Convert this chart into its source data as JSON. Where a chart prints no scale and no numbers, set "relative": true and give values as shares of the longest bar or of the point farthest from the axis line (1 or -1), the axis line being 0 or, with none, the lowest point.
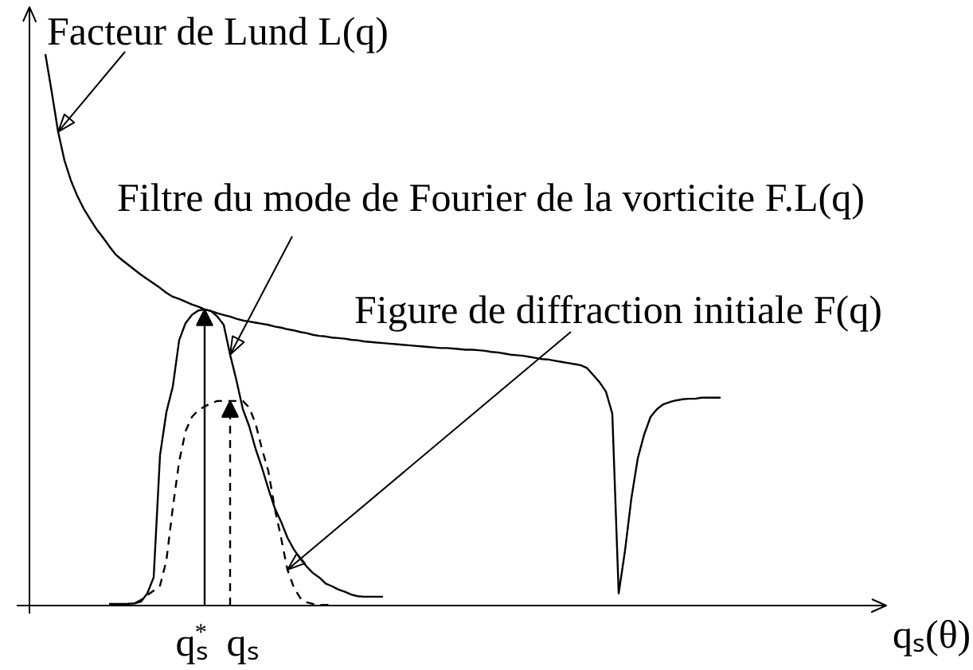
{
  "chart_data": {
    "type": "line",
    "relative": true,
    "tick_labels": "x",
    "line_style": "solid",
    "xlabel": "qₛ(θ)",
    "categories": [
      null,
      null,
      null,
      null,
      null,
      null,
      null,
      null,
      null,
      null,
      null,
      null,
      null,
      null,
      null,
      null,
      null,
      null,
      null,
      null,
      null,
      null,
      null,
      "qₛ$^{*}$",
      null,
      null,
      null,
      null,
      null,
      null,
      null,
      "qₛ",
      null,
      null,
      null,
      null,
      null,
      null,
      null,
      null,
      null,
      null,
      null,
      null,
      null,
      null,
      null,
      null,
      null,
      null,
      null,
      null,
      null,
      null,
      null,
      null,
      null,
      null,
      null,
      null,
      null,
      null,
      null,
      null,
      null,
      null,
      null,
      null,
      null,
      null,
      null,
      null,
      null,
      null,
      null,
      null,
      null,
      null,
      null,
      null,
      null,
      null,
      null,
      null,
      null,
      null,
      null,
      null,
      null,
      null,
      null,
      null,
      null,
      null,
      null,
      null,
      null,
      null,
      null,
      null,
      null,
      null,
      null,
      null,
      null,
      null,
      null
    ],
    "series": [
      {
        "name": "Facteur de Lund L(q)",
        "color": "#000000",
        "values": [
          1.0,
          0.931,
          0.859,
          0.807,
          0.771,
          0.743,
          0.72,
          0.701,
          0.683,
          0.668,
          0.652,
          0.637,
          0.627,
          0.618,
          0.609,
          0.6,
          0.592,
          0.584,
          0.576,
          0.567,
          0.56,
          0.556,
          0.551,
          0.546,
          0.542,
          0.537,
          0.534,
          0.53,
          0.527,
          0.524,
          0.52,
          0.517,
          0.515,
          0.513,
          0.511,
          0.509,
          0.506,
          0.504,
          0.501,
          0.499,
          0.496,
          0.494,
          0.491,
          0.489,
          0.488,
          0.486,
          0.485,
          0.484,
          0.482,
          0.481,
          0.479,
          0.478,
          0.477,
          0.476,
          0.475,
          0.474,
          0.473,
          0.472,
          0.471,
          0.47,
          0.469,
          0.468,
          0.467,
          0.467,
          0.466,
          0.465,
          0.464,
          0.464,
          0.463,
          0.462,
          0.46,
          0.459,
          0.457,
          0.455,
          0.454,
          0.453,
          0.451,
          0.449,
          0.447,
          0.446,
          0.444,
          0.442,
          0.44,
          0.438,
          0.436,
          0.431,
          0.418,
          0.405,
          0.388,
          0.348,
          0.022,
          0.1,
          0.195,
          0.267,
          0.31,
          0.342,
          0.356,
          0.365,
          0.369,
          0.372,
          0.374,
          0.375,
          0.375,
          0.377,
          0.377,
          0.377,
          0.377
        ]
      },
      {
        "name": "Filtre du mode de Fourier de la vorticite F.L(q)",
        "color": "#000000",
        "values": [
          null,
          null,
          null,
          null,
          null,
          null,
          null,
          null,
          null,
          null,
          0.003,
          0.003,
          0.003,
          0.003,
          0.004,
          0.007,
          0.022,
          0.051,
          0.273,
          0.351,
          0.397,
          0.481,
          0.512,
          0.527,
          0.535,
          0.537,
          0.534,
          0.524,
          0.509,
          0.455,
          0.408,
          0.356,
          0.325,
          0.284,
          0.25,
          0.212,
          0.177,
          0.152,
          0.123,
          0.102,
          0.085,
          0.071,
          0.059,
          0.051,
          0.04,
          0.035,
          0.029,
          0.025,
          0.02,
          0.017,
          0.016,
          0.016,
          0.016,
          0.016,
          null,
          null,
          null,
          null,
          null,
          null,
          null,
          null,
          null,
          null,
          null,
          null,
          null,
          null,
          null,
          null,
          null,
          null,
          null,
          null,
          null,
          null,
          null,
          null,
          null,
          null,
          null,
          null,
          null,
          null,
          null,
          null,
          null,
          null,
          null,
          null,
          null,
          null,
          null,
          null,
          null,
          null,
          null,
          null,
          null,
          null,
          null,
          null,
          null,
          null,
          null,
          null,
          null
        ]
      },
      {
        "name": "Figure de diffraction initiale F(q)",
        "color": "#000000",
        "line_style": "dashed",
        "values": [
          null,
          null,
          null,
          null,
          null,
          null,
          null,
          null,
          null,
          null,
          null,
          null,
          0.001,
          0.003,
          0.004,
          0.01,
          0.019,
          0.027,
          0.036,
          0.082,
          0.177,
          0.261,
          0.316,
          0.342,
          0.354,
          0.361,
          0.367,
          0.371,
          0.371,
          0.371,
          0.371,
          0.371,
          0.359,
          0.33,
          0.284,
          0.244,
          0.177,
          0.123,
          0.065,
          0.033,
          0.014,
          0.006,
          0.003,
          0.001,
          0.001,
          0.001,
          null,
          null,
          null,
          null,
          null,
          null,
          null,
          null,
          null,
          null,
          null,
          null,
          null,
          null,
          null,
          null,
          null,
          null,
          null,
          null,
          null,
          null,
          null,
          null,
          null,
          null,
          null,
          null,
          null,
          null,
          null,
          null,
          null,
          null,
          null,
          null,
          null,
          null,
          null,
          null,
          null,
          null,
          null,
          null,
          null,
          null,
          null,
          null,
          null,
          null,
          null,
          null,
          null,
          null,
          null,
          null,
          null,
          null,
          null,
          null,
          null
        ]
      }
    ]
  }
}
